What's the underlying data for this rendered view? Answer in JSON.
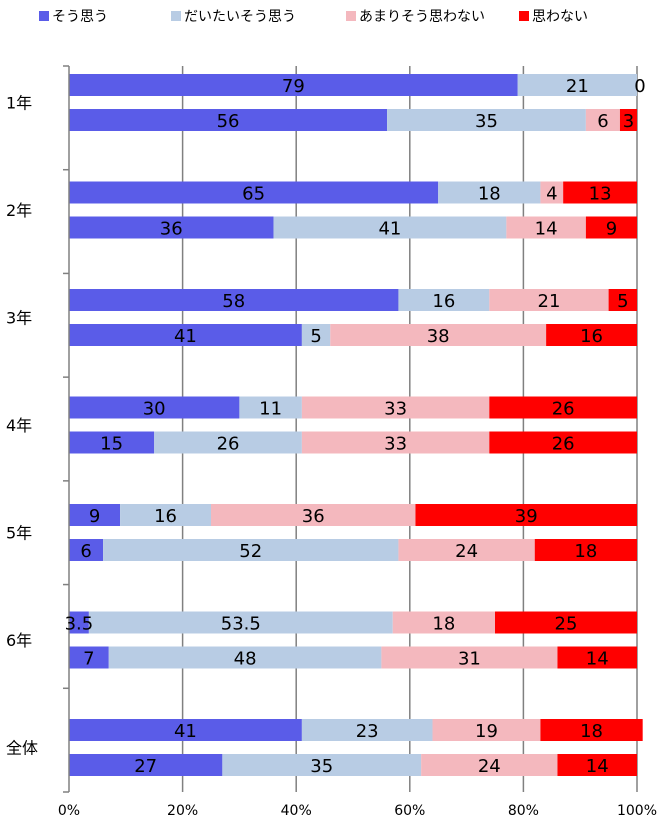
{
  "chart_data": {
    "type": "bar",
    "orientation": "horizontal",
    "stacked": "percent",
    "xlim": [
      0,
      100
    ],
    "x_ticks": [
      "0%",
      "20%",
      "40%",
      "60%",
      "80%",
      "100%"
    ],
    "grid": true,
    "legend_position": "top",
    "groups": [
      "1年",
      "2年",
      "3年",
      "4年",
      "5年",
      "6年",
      "全体"
    ],
    "series": [
      {
        "name": "そう思う",
        "color": "#5A5CE8"
      },
      {
        "name": "だいたいそう思う",
        "color": "#B8CCE4"
      },
      {
        "name": "あまりそう思わない",
        "color": "#F4B8BE"
      },
      {
        "name": "思わない",
        "color": "#FF0000"
      }
    ],
    "bars": [
      {
        "group": "1年",
        "values": [
          79,
          21,
          0,
          0
        ],
        "labels": [
          "79",
          "21",
          "0",
          ""
        ]
      },
      {
        "group": "1年",
        "values": [
          56,
          35,
          6,
          3
        ],
        "labels": [
          "56",
          "35",
          "6",
          "3"
        ]
      },
      {
        "group": "2年",
        "values": [
          65,
          18,
          4,
          13
        ],
        "labels": [
          "65",
          "18",
          "4",
          "13"
        ]
      },
      {
        "group": "2年",
        "values": [
          36,
          41,
          14,
          9
        ],
        "labels": [
          "36",
          "41",
          "14",
          "9"
        ]
      },
      {
        "group": "3年",
        "values": [
          58,
          16,
          21,
          5
        ],
        "labels": [
          "58",
          "16",
          "21",
          "5"
        ]
      },
      {
        "group": "3年",
        "values": [
          41,
          5,
          38,
          16
        ],
        "labels": [
          "41",
          "5",
          "38",
          "16"
        ]
      },
      {
        "group": "4年",
        "values": [
          30,
          11,
          33,
          26
        ],
        "labels": [
          "30",
          "11",
          "33",
          "26"
        ]
      },
      {
        "group": "4年",
        "values": [
          15,
          26,
          33,
          26
        ],
        "labels": [
          "15",
          "26",
          "33",
          "26"
        ]
      },
      {
        "group": "5年",
        "values": [
          9,
          16,
          36,
          39
        ],
        "labels": [
          "9",
          "16",
          "36",
          "39"
        ]
      },
      {
        "group": "5年",
        "values": [
          6,
          52,
          24,
          18
        ],
        "labels": [
          "6",
          "52",
          "24",
          "18"
        ]
      },
      {
        "group": "6年",
        "values": [
          3.5,
          53.5,
          18,
          25
        ],
        "labels": [
          "3.5",
          "53.5",
          "18",
          "25"
        ]
      },
      {
        "group": "6年",
        "values": [
          7,
          48,
          31,
          14
        ],
        "labels": [
          "7",
          "48",
          "31",
          "14"
        ]
      },
      {
        "group": "全体",
        "values": [
          41,
          23,
          19,
          18
        ],
        "labels": [
          "41",
          "23",
          "19",
          "18"
        ]
      },
      {
        "group": "全体",
        "values": [
          27,
          35,
          24,
          14
        ],
        "labels": [
          "27",
          "35",
          "24",
          "14"
        ]
      }
    ]
  }
}
